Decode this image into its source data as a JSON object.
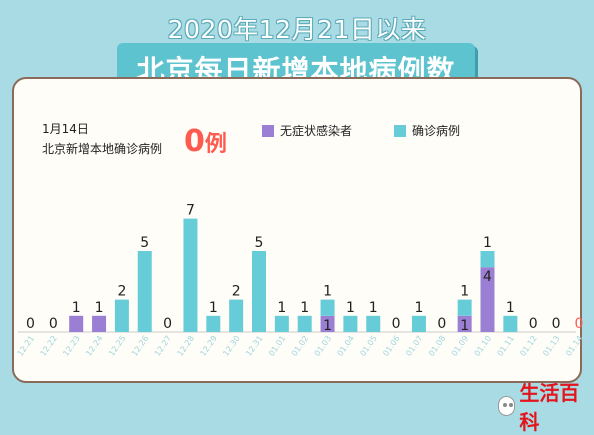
{
  "header": {
    "date_line": "2020年12月21日以来",
    "title": "北京每日新增本地病例数"
  },
  "info": {
    "date": "1月14日",
    "label": "北京新增本地确诊病例",
    "value": "0",
    "unit": "例"
  },
  "badge": {
    "text": "生活百科",
    "icon": "wechat-icon"
  },
  "colors": {
    "asymptomatic": "#9b7fd4",
    "confirmed": "#66cdd8",
    "highlight": "#ff5a4f"
  },
  "chart_data": {
    "type": "bar",
    "stacked": true,
    "title": "北京每日新增本地病例数",
    "categories": [
      "12.21",
      "12.22",
      "12.23",
      "12.24",
      "12.25",
      "12.26",
      "12.27",
      "12.28",
      "12.29",
      "12.30",
      "12.31",
      "01.01",
      "01.02",
      "01.03",
      "01.04",
      "01.05",
      "01.06",
      "01.07",
      "01.08",
      "01.09",
      "01.10",
      "01.11",
      "01.12",
      "01.13",
      "01.14"
    ],
    "series": [
      {
        "name": "无症状感染者",
        "values": [
          0,
          0,
          1,
          1,
          0,
          0,
          0,
          0,
          0,
          0,
          0,
          0,
          0,
          1,
          0,
          0,
          0,
          0,
          0,
          1,
          4,
          0,
          0,
          0,
          0
        ]
      },
      {
        "name": "确诊病例",
        "values": [
          0,
          0,
          0,
          0,
          2,
          5,
          0,
          7,
          1,
          2,
          5,
          1,
          1,
          1,
          1,
          1,
          0,
          1,
          0,
          1,
          1,
          1,
          0,
          0,
          0
        ]
      }
    ],
    "ylim": [
      0,
      8
    ],
    "grid": false,
    "legend_position": "top-right"
  }
}
